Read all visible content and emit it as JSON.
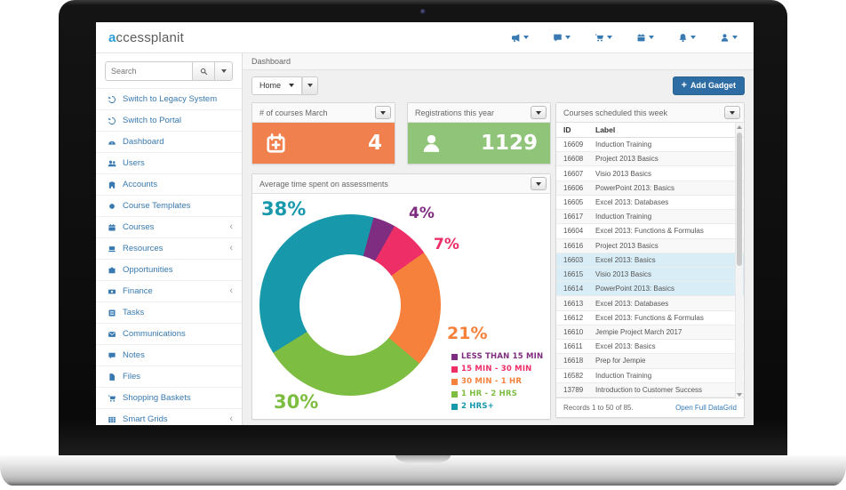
{
  "brand": {
    "accent": "a",
    "rest": "ccessplanit"
  },
  "navbar": {
    "menus": [
      "announcements-menu",
      "messages-menu",
      "basket-menu",
      "calendar-menu",
      "notifications-menu",
      "account-menu"
    ]
  },
  "sidebar": {
    "search_placeholder": "Search",
    "items": [
      {
        "label": "Switch to Legacy System",
        "icon": "history",
        "chevron": false
      },
      {
        "label": "Switch to Portal",
        "icon": "history",
        "chevron": false
      },
      {
        "label": "Dashboard",
        "icon": "gauge",
        "chevron": false
      },
      {
        "label": "Users",
        "icon": "people",
        "chevron": false
      },
      {
        "label": "Accounts",
        "icon": "building",
        "chevron": false
      },
      {
        "label": "Course Templates",
        "icon": "circle",
        "chevron": false
      },
      {
        "label": "Courses",
        "icon": "calendar",
        "chevron": true
      },
      {
        "label": "Resources",
        "icon": "laptop",
        "chevron": true
      },
      {
        "label": "Opportunities",
        "icon": "briefcase",
        "chevron": false
      },
      {
        "label": "Finance",
        "icon": "money",
        "chevron": true
      },
      {
        "label": "Tasks",
        "icon": "tasks",
        "chevron": false
      },
      {
        "label": "Communications",
        "icon": "envelope",
        "chevron": false
      },
      {
        "label": "Notes",
        "icon": "note",
        "chevron": false
      },
      {
        "label": "Files",
        "icon": "file",
        "chevron": false
      },
      {
        "label": "Shopping Baskets",
        "icon": "cart",
        "chevron": false
      },
      {
        "label": "Smart Grids",
        "icon": "grid",
        "chevron": true
      }
    ]
  },
  "main": {
    "breadcrumb": "Dashboard"
  },
  "toolbar": {
    "dashboard_select": "Home",
    "add_gadget": "Add Gadget",
    "add_icon": "+"
  },
  "widgets": {
    "courses": {
      "title": "# of courses March",
      "value": "4",
      "color": "#f0814e"
    },
    "registrations": {
      "title": "Registrations this year",
      "value": "1129",
      "color": "#90c478"
    }
  },
  "chart_data": {
    "type": "pie",
    "donut": true,
    "title": "Average time spent on assessments",
    "labels": [
      "LESS THAN 15 MIN",
      "15 MIN - 30 MIN",
      "30 MIN - 1 HR",
      "1 HR - 2 HRS",
      "2 HRS+"
    ],
    "values": [
      4,
      7,
      21,
      30,
      38
    ],
    "percent_labels": [
      "4%",
      "7%",
      "21%",
      "30%",
      "38%"
    ],
    "colors": [
      "#7f2d80",
      "#ee2e67",
      "#f5813c",
      "#7cbd42",
      "#1799ab"
    ],
    "start_angle_deg": 15,
    "legend_position": "bottom-right"
  },
  "schedule": {
    "title": "Courses scheduled this week",
    "columns": [
      "ID",
      "Label"
    ],
    "highlight_row": "#d9edf7",
    "rows": [
      {
        "id": "16609",
        "label": "Induction Training",
        "highlighted": false
      },
      {
        "id": "16608",
        "label": "Project 2013 Basics",
        "highlighted": false
      },
      {
        "id": "16607",
        "label": "Visio 2013 Basics",
        "highlighted": false
      },
      {
        "id": "16606",
        "label": "PowerPoint 2013: Basics",
        "highlighted": false
      },
      {
        "id": "16605",
        "label": "Excel 2013: Databases",
        "highlighted": false
      },
      {
        "id": "16617",
        "label": "Induction Training",
        "highlighted": false
      },
      {
        "id": "16604",
        "label": "Excel 2013: Functions & Formulas",
        "highlighted": false
      },
      {
        "id": "16616",
        "label": "Project 2013 Basics",
        "highlighted": false
      },
      {
        "id": "16603",
        "label": "Excel 2013: Basics",
        "highlighted": true
      },
      {
        "id": "16615",
        "label": "Visio 2013 Basics",
        "highlighted": true
      },
      {
        "id": "16614",
        "label": "PowerPoint 2013: Basics",
        "highlighted": true
      },
      {
        "id": "16613",
        "label": "Excel 2013: Databases",
        "highlighted": false
      },
      {
        "id": "16612",
        "label": "Excel 2013: Functions & Formulas",
        "highlighted": false
      },
      {
        "id": "16610",
        "label": "Jempie Project March 2017",
        "highlighted": false
      },
      {
        "id": "16611",
        "label": "Excel 2013: Basics",
        "highlighted": false
      },
      {
        "id": "16618",
        "label": "Prep for Jempie",
        "highlighted": false
      },
      {
        "id": "16582",
        "label": "Induction Training",
        "highlighted": false
      },
      {
        "id": "13789",
        "label": "Introduction to Customer Success",
        "highlighted": false
      }
    ],
    "records_text": "Records 1 to 50 of 85.",
    "open_link": "Open Full DataGrid"
  }
}
